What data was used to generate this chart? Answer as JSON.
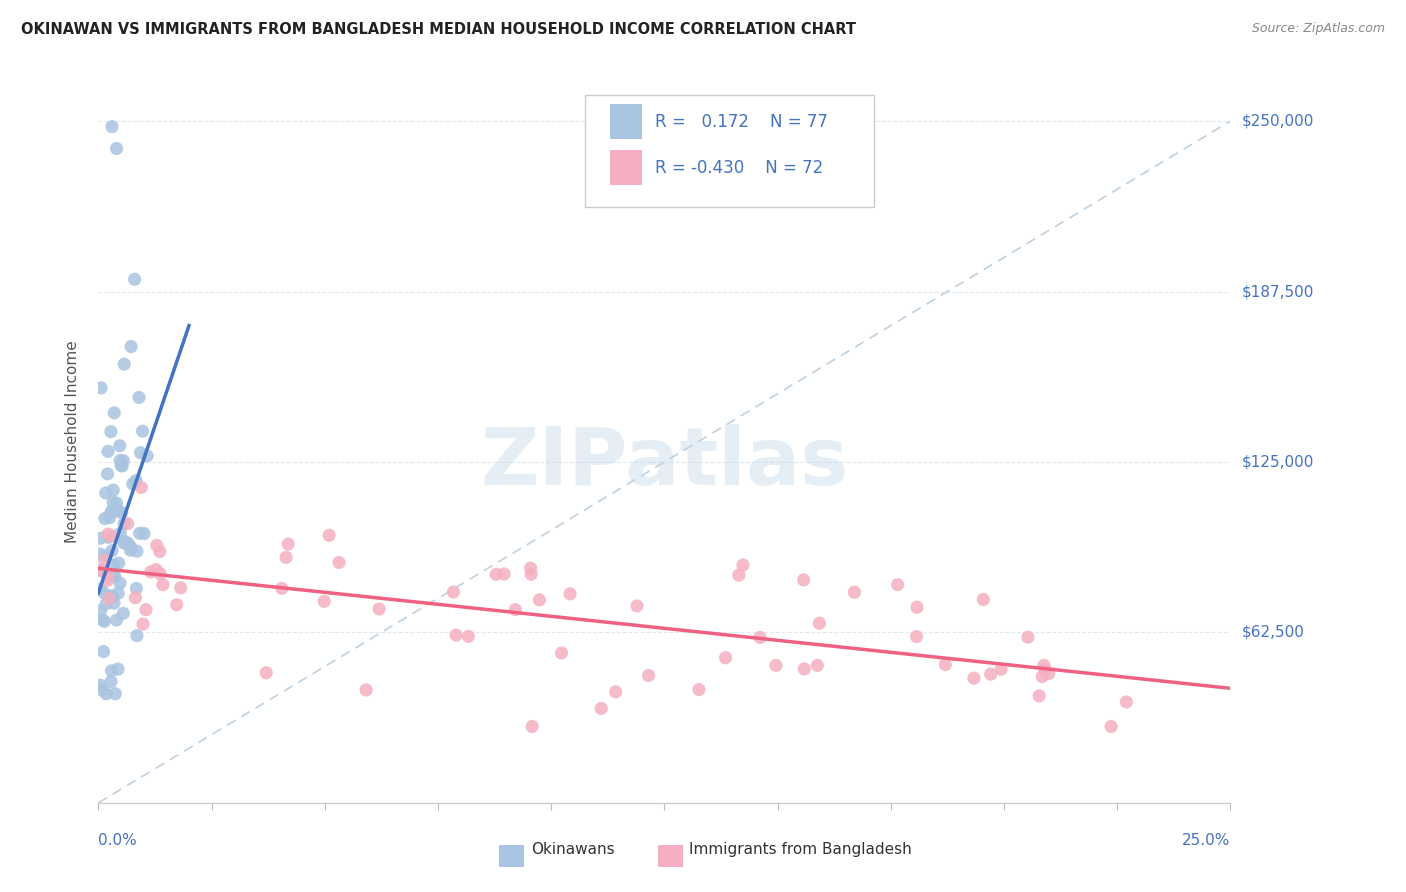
{
  "title": "OKINAWAN VS IMMIGRANTS FROM BANGLADESH MEDIAN HOUSEHOLD INCOME CORRELATION CHART",
  "source": "Source: ZipAtlas.com",
  "ylabel": "Median Household Income",
  "xlim": [
    0.0,
    0.25
  ],
  "ylim": [
    0,
    265000
  ],
  "ytick_vals": [
    0,
    62500,
    125000,
    187500,
    250000
  ],
  "ytick_labels_right": [
    "",
    "$62,500",
    "$125,000",
    "$187,500",
    "$250,000"
  ],
  "xtick_vals": [
    0.0,
    0.025,
    0.05,
    0.075,
    0.1,
    0.125,
    0.15,
    0.175,
    0.2,
    0.225,
    0.25
  ],
  "color_okinawan_dot": "#a8c4e0",
  "color_bangladesh_dot": "#f4b0c0",
  "color_line_okinawan": "#4472c4",
  "color_line_bangladesh": "#f06080",
  "color_ref_line": "#b8ccdd",
  "color_axis_text": "#4472c4",
  "color_grid": "#e0e8f0",
  "legend_text1": "R =   0.172    N = 77",
  "legend_text2": "R = -0.430    N = 72",
  "watermark": "ZIPatlas",
  "legend_label1": "Okinawans",
  "legend_label2": "Immigrants from Bangladesh",
  "ok_trend_x0": 0.0,
  "ok_trend_y0": 77000,
  "ok_trend_x1": 0.02,
  "ok_trend_y1": 175000,
  "ban_trend_x0": 0.0,
  "ban_trend_y0": 86000,
  "ban_trend_x1": 0.25,
  "ban_trend_y1": 42000
}
